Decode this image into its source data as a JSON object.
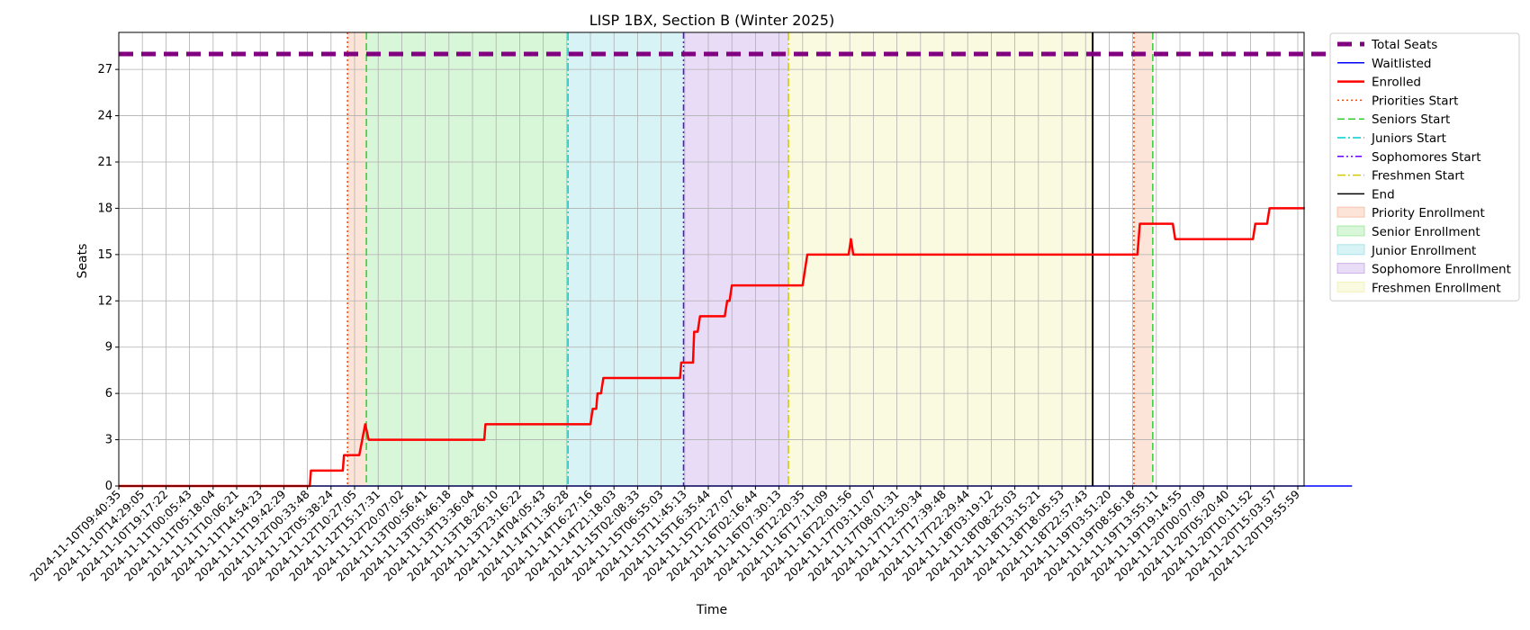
{
  "chart_data": {
    "type": "line",
    "title": "LISP 1BX, Section B (Winter 2025)",
    "xlabel": "Time",
    "ylabel": "Seats",
    "ylim": [
      0,
      29.4
    ],
    "yticks": [
      0,
      3,
      6,
      9,
      12,
      15,
      18,
      21,
      24,
      27
    ],
    "grid": true,
    "legend_position": "outside right",
    "x_ticks": [
      "2024-11-10T09:40:35",
      "2024-11-10T14:29:05",
      "2024-11-10T19:17:22",
      "2024-11-11T00:05:43",
      "2024-11-11T05:18:04",
      "2024-11-11T10:06:21",
      "2024-11-11T14:54:23",
      "2024-11-11T19:42:29",
      "2024-11-12T00:33:48",
      "2024-11-12T05:38:24",
      "2024-11-12T10:27:05",
      "2024-11-12T15:17:31",
      "2024-11-12T20:07:02",
      "2024-11-13T00:56:41",
      "2024-11-13T05:46:18",
      "2024-11-13T13:36:04",
      "2024-11-13T18:26:10",
      "2024-11-13T23:16:22",
      "2024-11-14T04:05:43",
      "2024-11-14T11:36:28",
      "2024-11-14T16:27:16",
      "2024-11-14T21:18:03",
      "2024-11-15T02:08:33",
      "2024-11-15T06:55:03",
      "2024-11-15T11:45:13",
      "2024-11-15T16:35:44",
      "2024-11-15T21:27:07",
      "2024-11-16T02:16:44",
      "2024-11-16T07:30:13",
      "2024-11-16T12:20:35",
      "2024-11-16T17:11:09",
      "2024-11-16T22:01:56",
      "2024-11-17T03:11:07",
      "2024-11-17T08:01:31",
      "2024-11-17T12:50:34",
      "2024-11-17T17:39:48",
      "2024-11-17T22:29:44",
      "2024-11-18T03:19:12",
      "2024-11-18T08:25:03",
      "2024-11-18T13:15:21",
      "2024-11-18T18:05:53",
      "2024-11-18T22:57:43",
      "2024-11-19T03:51:20",
      "2024-11-19T08:56:18",
      "2024-11-19T13:55:11",
      "2024-11-19T19:14:55",
      "2024-11-20T00:07:09",
      "2024-11-20T05:20:40",
      "2024-11-20T10:11:52",
      "2024-11-20T15:03:57",
      "2024-11-20T19:55:59"
    ],
    "x_note": "x values below are positions on the tick index scale (tick i = 0..50)",
    "series": [
      {
        "name": "Total Seats",
        "color": "#800080",
        "style": "dashed-thick",
        "points": [
          [
            0,
            28
          ],
          [
            52.3,
            28
          ]
        ]
      },
      {
        "name": "Waitlisted",
        "color": "#0000ff",
        "style": "solid",
        "points": [
          [
            0,
            0
          ],
          [
            52.3,
            0
          ]
        ]
      },
      {
        "name": "Enrolled",
        "color": "#ff0000",
        "style": "solid-thick",
        "points": [
          [
            0,
            0
          ],
          [
            8.1,
            0
          ],
          [
            8.15,
            1
          ],
          [
            9.5,
            1
          ],
          [
            9.55,
            2
          ],
          [
            10.2,
            2
          ],
          [
            10.45,
            4
          ],
          [
            10.6,
            3
          ],
          [
            15.5,
            3
          ],
          [
            15.55,
            4
          ],
          [
            20.0,
            4
          ],
          [
            20.1,
            5
          ],
          [
            20.25,
            5
          ],
          [
            20.3,
            6
          ],
          [
            20.45,
            6
          ],
          [
            20.55,
            7
          ],
          [
            23.8,
            7
          ],
          [
            23.85,
            8
          ],
          [
            24.35,
            8
          ],
          [
            24.4,
            10
          ],
          [
            24.55,
            10
          ],
          [
            24.65,
            11
          ],
          [
            25.7,
            11
          ],
          [
            25.8,
            12
          ],
          [
            25.9,
            12
          ],
          [
            26.0,
            13
          ],
          [
            29.0,
            13
          ],
          [
            29.2,
            15
          ],
          [
            30.95,
            15
          ],
          [
            31.05,
            16
          ],
          [
            31.15,
            15
          ],
          [
            43.2,
            15
          ],
          [
            43.3,
            17
          ],
          [
            44.7,
            17
          ],
          [
            44.8,
            16
          ],
          [
            48.1,
            16
          ],
          [
            48.2,
            17
          ],
          [
            48.7,
            17
          ],
          [
            48.8,
            18
          ],
          [
            50.3,
            18
          ]
        ]
      }
    ],
    "vertical_markers": [
      {
        "name": "Priorities Start",
        "x": 9.7,
        "color": "#ff4500",
        "style": "dotted"
      },
      {
        "name": "Seniors Start",
        "x": 10.5,
        "color": "#32cd32",
        "style": "dashed"
      },
      {
        "name": "Juniors Start",
        "x": 19.05,
        "color": "#00ced1",
        "style": "dashdot"
      },
      {
        "name": "Sophomores Start",
        "x": 23.95,
        "color": "#6a00ff",
        "style": "dashdotdot"
      },
      {
        "name": "Freshmen Start",
        "x": 28.4,
        "color": "#d4c800",
        "style": "dashdot"
      },
      {
        "name": "End",
        "x": 41.3,
        "color": "#000000",
        "style": "solid"
      },
      {
        "name": "Priorities Start",
        "x": 43.05,
        "color": "#ff4500",
        "style": "dotted"
      },
      {
        "name": "Seniors Start",
        "x": 43.85,
        "color": "#32cd32",
        "style": "dashed"
      }
    ],
    "shaded_regions": [
      {
        "name": "Priority Enrollment",
        "from": 9.7,
        "to": 10.5,
        "color": "#f4a582"
      },
      {
        "name": "Senior Enrollment",
        "from": 10.5,
        "to": 19.05,
        "color": "#7fe07f"
      },
      {
        "name": "Junior Enrollment",
        "from": 19.05,
        "to": 23.95,
        "color": "#7fd8e0"
      },
      {
        "name": "Sophomore Enrollment",
        "from": 23.95,
        "to": 28.4,
        "color": "#b48ce0"
      },
      {
        "name": "Freshmen Enrollment",
        "from": 28.4,
        "to": 41.3,
        "color": "#eded9a"
      },
      {
        "name": "Priority Enrollment",
        "from": 43.05,
        "to": 43.85,
        "color": "#f4a582"
      }
    ],
    "legend": [
      {
        "label": "Total Seats",
        "kind": "line",
        "color": "#800080",
        "style": "dashed-thick"
      },
      {
        "label": "Waitlisted",
        "kind": "line",
        "color": "#0000ff",
        "style": "solid"
      },
      {
        "label": "Enrolled",
        "kind": "line",
        "color": "#ff0000",
        "style": "solid-thick"
      },
      {
        "label": "Priorities Start",
        "kind": "line",
        "color": "#ff4500",
        "style": "dotted"
      },
      {
        "label": "Seniors Start",
        "kind": "line",
        "color": "#32cd32",
        "style": "dashed"
      },
      {
        "label": "Juniors Start",
        "kind": "line",
        "color": "#00ced1",
        "style": "dashdot"
      },
      {
        "label": "Sophomores Start",
        "kind": "line",
        "color": "#6a00ff",
        "style": "dashdotdot"
      },
      {
        "label": "Freshmen Start",
        "kind": "line",
        "color": "#d4c800",
        "style": "dashdot"
      },
      {
        "label": "End",
        "kind": "line",
        "color": "#000000",
        "style": "solid"
      },
      {
        "label": "Priority Enrollment",
        "kind": "patch",
        "color": "#f4a582"
      },
      {
        "label": "Senior Enrollment",
        "kind": "patch",
        "color": "#7fe07f"
      },
      {
        "label": "Junior Enrollment",
        "kind": "patch",
        "color": "#7fd8e0"
      },
      {
        "label": "Sophomore Enrollment",
        "kind": "patch",
        "color": "#b48ce0"
      },
      {
        "label": "Freshmen Enrollment",
        "kind": "patch",
        "color": "#eded9a"
      }
    ]
  }
}
